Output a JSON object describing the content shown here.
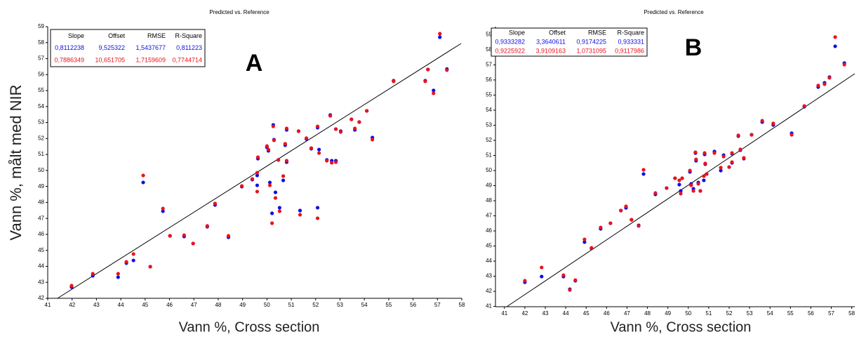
{
  "chart_data": [
    {
      "type": "scatter",
      "title": "Predicted vs. Reference",
      "x_label": "Vann %, Cross section",
      "y_label": "Vann %, målt med NIR",
      "panel_label": "A",
      "stats": {
        "columns": [
          "Slope",
          "Offset",
          "RMSE",
          "R-Square"
        ],
        "rows": [
          [
            "0,8112238",
            "9,525322",
            "1,5437677",
            "0,811223"
          ],
          [
            "0,7886349",
            "10,651705",
            "1,7159609",
            "0,7744714"
          ]
        ]
      },
      "xlim": [
        41,
        58
      ],
      "ylim": [
        42,
        59
      ],
      "xticks": [
        41,
        42,
        43,
        44,
        45,
        46,
        47,
        48,
        49,
        50,
        51,
        52,
        53,
        54,
        55,
        56,
        57,
        58
      ],
      "yticks": [
        42,
        43,
        44,
        45,
        46,
        47,
        48,
        49,
        50,
        51,
        52,
        53,
        54,
        55,
        56,
        57,
        58,
        59
      ],
      "x": [
        41.98,
        42.85,
        43.89,
        44.23,
        44.52,
        44.92,
        45.21,
        45.73,
        46.02,
        46.6,
        46.97,
        47.55,
        47.87,
        48.42,
        48.97,
        49.4,
        49.6,
        49.6,
        49.63,
        50.0,
        50.06,
        50.12,
        50.21,
        50.26,
        50.29,
        50.35,
        50.47,
        50.52,
        50.67,
        50.75,
        50.81,
        50.81,
        51.3,
        51.36,
        51.62,
        51.82,
        52.08,
        52.14,
        52.08,
        52.46,
        52.6,
        52.66,
        52.83,
        52.83,
        53.03,
        53.47,
        53.61,
        53.79,
        54.1,
        54.33,
        55.2,
        56.5,
        56.61,
        56.84,
        57.1,
        57.39
      ],
      "series": [
        {
          "color": "#1010e0",
          "values": [
            42.7,
            43.41,
            43.32,
            44.2,
            44.37,
            49.25,
            43.98,
            47.45,
            45.91,
            45.87,
            45.43,
            46.48,
            47.84,
            45.82,
            48.99,
            49.43,
            49.07,
            49.69,
            50.74,
            51.45,
            51.23,
            49.25,
            47.32,
            52.85,
            51.93,
            48.63,
            50.66,
            47.67,
            49.38,
            51.58,
            50.52,
            52.54,
            52.46,
            47.49,
            51.97,
            51.36,
            52.68,
            51.31,
            47.67,
            50.66,
            53.47,
            50.61,
            50.61,
            52.59,
            52.46,
            53.2,
            52.54,
            53.03,
            53.73,
            52.06,
            55.62,
            55.62,
            56.32,
            55.01,
            58.34,
            56.35
          ]
        },
        {
          "color": "#e8141c",
          "values": [
            42.79,
            43.54,
            43.54,
            44.28,
            44.77,
            49.69,
            43.98,
            47.62,
            45.91,
            45.95,
            45.43,
            46.53,
            47.93,
            45.91,
            49.03,
            49.47,
            48.68,
            49.86,
            50.83,
            51.53,
            51.31,
            49.07,
            46.7,
            52.76,
            51.89,
            48.28,
            50.66,
            47.45,
            49.65,
            51.67,
            50.61,
            52.63,
            52.46,
            47.23,
            52.02,
            51.4,
            52.76,
            51.09,
            47.01,
            50.61,
            53.42,
            50.48,
            50.52,
            52.59,
            52.41,
            53.2,
            52.63,
            53.03,
            53.73,
            51.93,
            55.58,
            55.58,
            56.32,
            54.83,
            58.56,
            56.28
          ]
        }
      ]
    },
    {
      "type": "scatter",
      "title": "Predicted vs. Reference",
      "x_label": "Vann %, Cross section",
      "panel_label": "B",
      "stats": {
        "columns": [
          "Slope",
          "Offset",
          "RMSE",
          "R-Square"
        ],
        "rows": [
          [
            "0,9333282",
            "3,3640611",
            "0,9174225",
            "0,933331"
          ],
          [
            "0,9225922",
            "3,9109163",
            "1,0731095",
            "0,9117986"
          ]
        ]
      },
      "xlim": [
        40.56,
        58.15
      ],
      "ylim": [
        40.98,
        59.53
      ],
      "xticks": [
        41,
        42,
        43,
        44,
        45,
        46,
        47,
        48,
        49,
        50,
        51,
        52,
        53,
        54,
        55,
        56,
        57,
        58
      ],
      "yticks": [
        41,
        42,
        43,
        44,
        45,
        46,
        47,
        48,
        49,
        50,
        51,
        52,
        53,
        54,
        55,
        56,
        57,
        58,
        59
      ],
      "x": [
        42.0,
        42.82,
        43.89,
        44.2,
        44.47,
        44.92,
        45.26,
        45.71,
        46.19,
        46.7,
        46.95,
        47.22,
        47.57,
        47.81,
        48.39,
        48.94,
        49.35,
        49.56,
        49.63,
        49.7,
        50.08,
        50.14,
        50.25,
        50.35,
        50.38,
        50.49,
        50.59,
        50.76,
        50.8,
        50.83,
        50.9,
        51.28,
        51.59,
        51.73,
        52.0,
        52.14,
        52.14,
        52.45,
        52.55,
        52.72,
        53.1,
        53.62,
        54.16,
        55.06,
        55.68,
        56.36,
        56.67,
        56.91,
        57.19,
        57.64
      ],
      "series": [
        {
          "color": "#1010e0",
          "values": [
            42.6,
            42.98,
            42.98,
            42.14,
            42.7,
            45.26,
            44.84,
            46.14,
            46.51,
            47.35,
            47.53,
            46.74,
            46.37,
            49.77,
            48.42,
            48.84,
            49.49,
            49.07,
            48.65,
            49.49,
            49.91,
            49.12,
            48.79,
            51.16,
            50.65,
            49.21,
            48.65,
            49.35,
            51.07,
            50.42,
            49.77,
            51.26,
            50.0,
            51.02,
            50.23,
            51.12,
            50.51,
            52.28,
            51.35,
            50.79,
            52.37,
            53.21,
            53.02,
            52.47,
            54.23,
            55.53,
            55.81,
            56.19,
            58.23,
            57.12
          ]
        },
        {
          "color": "#e8141c",
          "values": [
            42.7,
            43.58,
            43.07,
            42.09,
            42.74,
            45.44,
            44.88,
            46.23,
            46.51,
            47.35,
            47.63,
            46.74,
            46.33,
            50.05,
            48.51,
            48.84,
            49.49,
            49.35,
            48.47,
            49.49,
            50.0,
            49.02,
            48.65,
            51.21,
            50.74,
            49.12,
            48.65,
            49.63,
            51.16,
            50.47,
            49.77,
            51.16,
            50.19,
            50.93,
            50.23,
            51.16,
            50.56,
            52.33,
            51.4,
            50.84,
            52.37,
            53.3,
            53.12,
            52.37,
            54.28,
            55.63,
            55.72,
            56.14,
            58.84,
            57.02
          ]
        }
      ]
    }
  ]
}
